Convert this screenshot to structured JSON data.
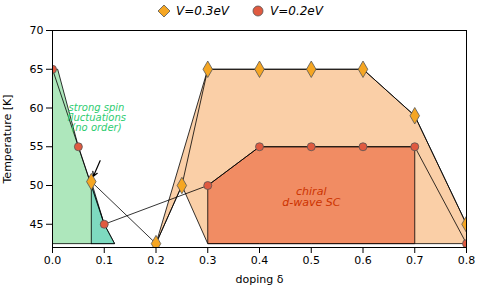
{
  "chart_data": {
    "type": "line",
    "xlabel": "doping δ",
    "ylabel": "Temperature [K]",
    "xlim": [
      0.0,
      0.8
    ],
    "ylim": [
      42,
      70
    ],
    "xticks": [
      {
        "value": 0.0,
        "label": "0.0"
      },
      0.1,
      0.2,
      0.3,
      0.4,
      0.5,
      0.6,
      0.7,
      0.8
    ],
    "yticks": [
      45,
      50,
      55,
      60,
      65,
      70
    ],
    "legend": "top",
    "series": [
      {
        "name": "V=0.2eV",
        "color": "#e05a40",
        "marker": "circle",
        "x": [
          0.0,
          0.05,
          0.1,
          0.3,
          0.4,
          0.5,
          0.6,
          0.7,
          0.8
        ],
        "values": [
          65,
          55,
          45,
          50,
          55,
          55,
          55,
          55,
          42.5
        ]
      },
      {
        "name": "V=0.3eV",
        "color": "#f5a623",
        "marker": "diamond",
        "x": [
          0.075,
          0.2,
          0.25,
          0.3,
          0.4,
          0.5,
          0.6,
          0.7,
          0.8
        ],
        "values": [
          50.5,
          42.5,
          50,
          65,
          65,
          65,
          65,
          59,
          45
        ]
      }
    ],
    "regions": [
      {
        "color": "#5ecf7a",
        "x": [
          0.0,
          0.0,
          0.01,
          0.05,
          0.1,
          0.12,
          0.0
        ],
        "y": [
          42.5,
          65,
          65,
          55,
          45,
          42.5,
          42.5
        ]
      },
      {
        "color": "#4ecdc4",
        "x": [
          0.075,
          0.075,
          0.1,
          0.12,
          0.075
        ],
        "y": [
          42.5,
          50.5,
          45,
          42.5,
          42.5
        ]
      },
      {
        "color": "#f5a050",
        "x": [
          0.2,
          0.3,
          0.4,
          0.5,
          0.6,
          0.7,
          0.8,
          0.8,
          0.7,
          0.6,
          0.5,
          0.4,
          0.3,
          0.25,
          0.2
        ],
        "y": [
          42.5,
          65,
          65,
          65,
          65,
          59,
          45,
          42.5,
          42.5,
          42.5,
          42.5,
          42.5,
          42.5,
          50,
          42.5
        ]
      },
      {
        "color": "#e84a20",
        "x": [
          0.3,
          0.4,
          0.5,
          0.6,
          0.7,
          0.7,
          0.6,
          0.5,
          0.4,
          0.3,
          0.3
        ],
        "y": [
          50,
          55,
          55,
          55,
          55,
          42.5,
          42.5,
          42.5,
          42.5,
          42.5,
          50
        ]
      }
    ],
    "annotations": [
      {
        "text": "strong spin\nfluctuations\n(no order)",
        "x": 0.085,
        "y": 60.5,
        "color": "#2ecc71"
      },
      {
        "text": "chiral\nd-wave SC",
        "x": 0.5,
        "y": 48.5,
        "color": "#cc3300"
      }
    ],
    "arrows": [
      {
        "x1": 0.092,
        "y1": 53.2,
        "x2": 0.079,
        "y2": 51.2
      }
    ]
  }
}
